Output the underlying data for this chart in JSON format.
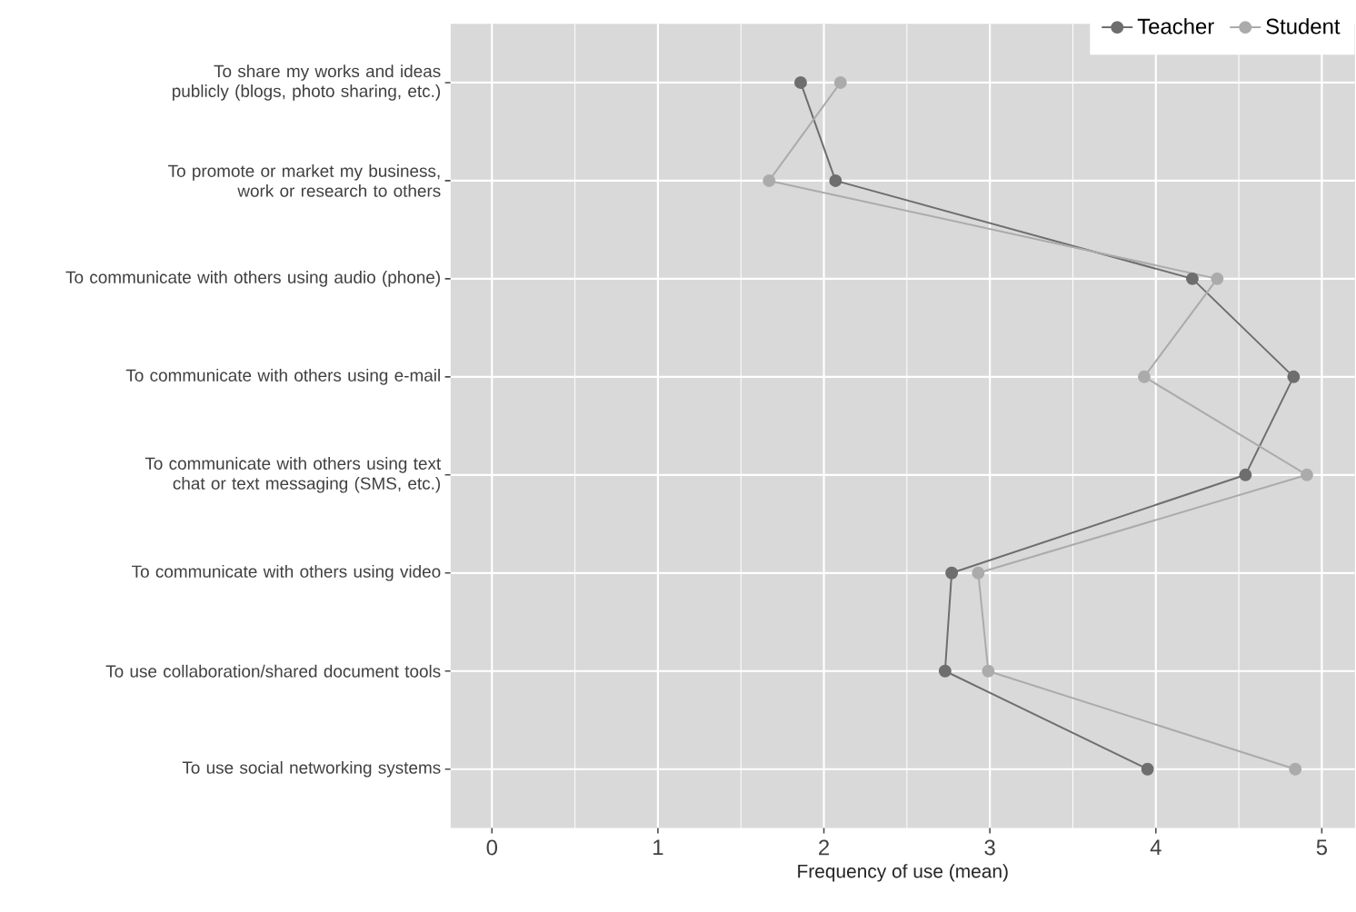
{
  "chart_data": {
    "type": "line",
    "orientation": "horizontal",
    "xlabel": "Frequency of use (mean)",
    "categories": [
      "To share my works and ideas publicly (blogs, photo sharing, etc.)",
      "To promote or market my business, work or research to others",
      "To communicate with others using audio (phone)",
      "To communicate with others using e-mail",
      "To communicate with others using text chat or text messaging (SMS, etc.)",
      "To communicate with others using video",
      "To use collaboration/shared document tools",
      "To use social networking systems"
    ],
    "series": [
      {
        "name": "Teacher",
        "color": "#6e6e6e",
        "values": [
          1.86,
          2.07,
          4.22,
          4.83,
          4.54,
          2.77,
          2.73,
          3.95
        ]
      },
      {
        "name": "Student",
        "color": "#ababab",
        "values": [
          2.1,
          1.67,
          4.37,
          3.93,
          4.91,
          2.93,
          2.99,
          4.84
        ]
      }
    ],
    "xlim": [
      -0.25,
      5.2
    ],
    "xticks": [
      0,
      1,
      2,
      3,
      4,
      5
    ],
    "grid": true,
    "legend": "top right",
    "marker": "circle",
    "line_style": "solid"
  }
}
